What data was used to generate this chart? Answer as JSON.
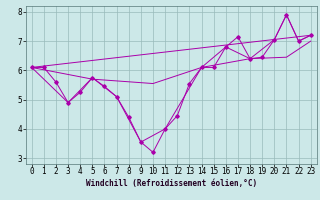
{
  "background_color": "#cce8e8",
  "plot_bg_color": "#cce8e8",
  "line_color": "#aa00aa",
  "grid_color": "#99bbbb",
  "xlabel": "Windchill (Refroidissement éolien,°C)",
  "xlabel_fontsize": 5.5,
  "tick_fontsize": 5.5,
  "xlim": [
    -0.5,
    23.5
  ],
  "ylim": [
    2.8,
    8.2
  ],
  "yticks": [
    3,
    4,
    5,
    6,
    7,
    8
  ],
  "xticks": [
    0,
    1,
    2,
    3,
    4,
    5,
    6,
    7,
    8,
    9,
    10,
    11,
    12,
    13,
    14,
    15,
    16,
    17,
    18,
    19,
    20,
    21,
    22,
    23
  ],
  "line1_x": [
    0,
    1,
    2,
    3,
    4,
    5,
    6,
    7,
    8,
    9,
    10,
    11,
    12,
    13,
    14,
    15,
    16,
    17,
    18,
    19,
    20,
    21,
    22,
    23
  ],
  "line1_y": [
    6.1,
    6.1,
    5.6,
    4.9,
    5.25,
    5.75,
    5.45,
    5.1,
    4.4,
    3.55,
    3.2,
    4.0,
    4.45,
    5.55,
    6.1,
    6.1,
    6.8,
    7.15,
    6.4,
    6.45,
    7.05,
    7.9,
    7.0,
    7.2
  ],
  "line2_x": [
    0,
    23
  ],
  "line2_y": [
    6.1,
    7.2
  ],
  "line3_x": [
    0,
    5,
    10,
    14,
    18,
    21,
    23
  ],
  "line3_y": [
    6.1,
    5.7,
    5.55,
    6.1,
    6.4,
    6.45,
    7.0
  ],
  "line4_x": [
    0,
    3,
    5,
    7,
    9,
    11,
    14,
    16,
    18,
    20,
    21,
    22,
    23
  ],
  "line4_y": [
    6.1,
    4.9,
    5.75,
    5.1,
    3.55,
    4.0,
    6.1,
    6.8,
    6.4,
    7.05,
    7.9,
    7.0,
    7.2
  ]
}
